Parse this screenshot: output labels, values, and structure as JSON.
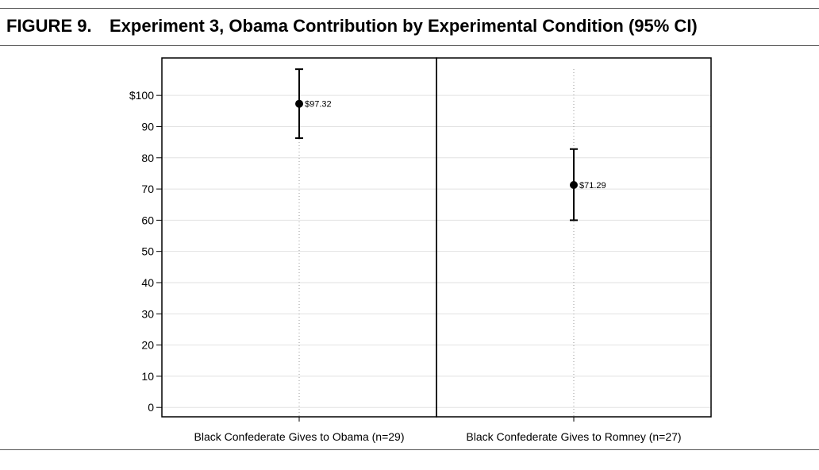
{
  "figure": {
    "number": "FIGURE 9.",
    "title": "Experiment 3, Obama Contribution by Experimental Condition (95% CI)"
  },
  "chart_data": {
    "type": "scatter",
    "title": "Experiment 3, Obama Contribution by Experimental Condition (95% CI)",
    "xlabel": "",
    "ylabel": "",
    "ylim": [
      -3,
      112
    ],
    "yticks": [
      100,
      90,
      80,
      70,
      60,
      50,
      40,
      30,
      20,
      10,
      0
    ],
    "ytick_labels": [
      "$100",
      "90",
      "80",
      "70",
      "60",
      "50",
      "40",
      "30",
      "20",
      "10",
      "0"
    ],
    "grid": true,
    "panels": [
      {
        "category": "Black Confederate Gives to Obama (n=29)",
        "value": 97.32,
        "value_label": "$97.32",
        "ci_low": 86.3,
        "ci_high": 108.4
      },
      {
        "category": "Black Confederate Gives to Romney (n=27)",
        "value": 71.29,
        "value_label": "$71.29",
        "ci_low": 60.0,
        "ci_high": 82.8
      }
    ]
  }
}
